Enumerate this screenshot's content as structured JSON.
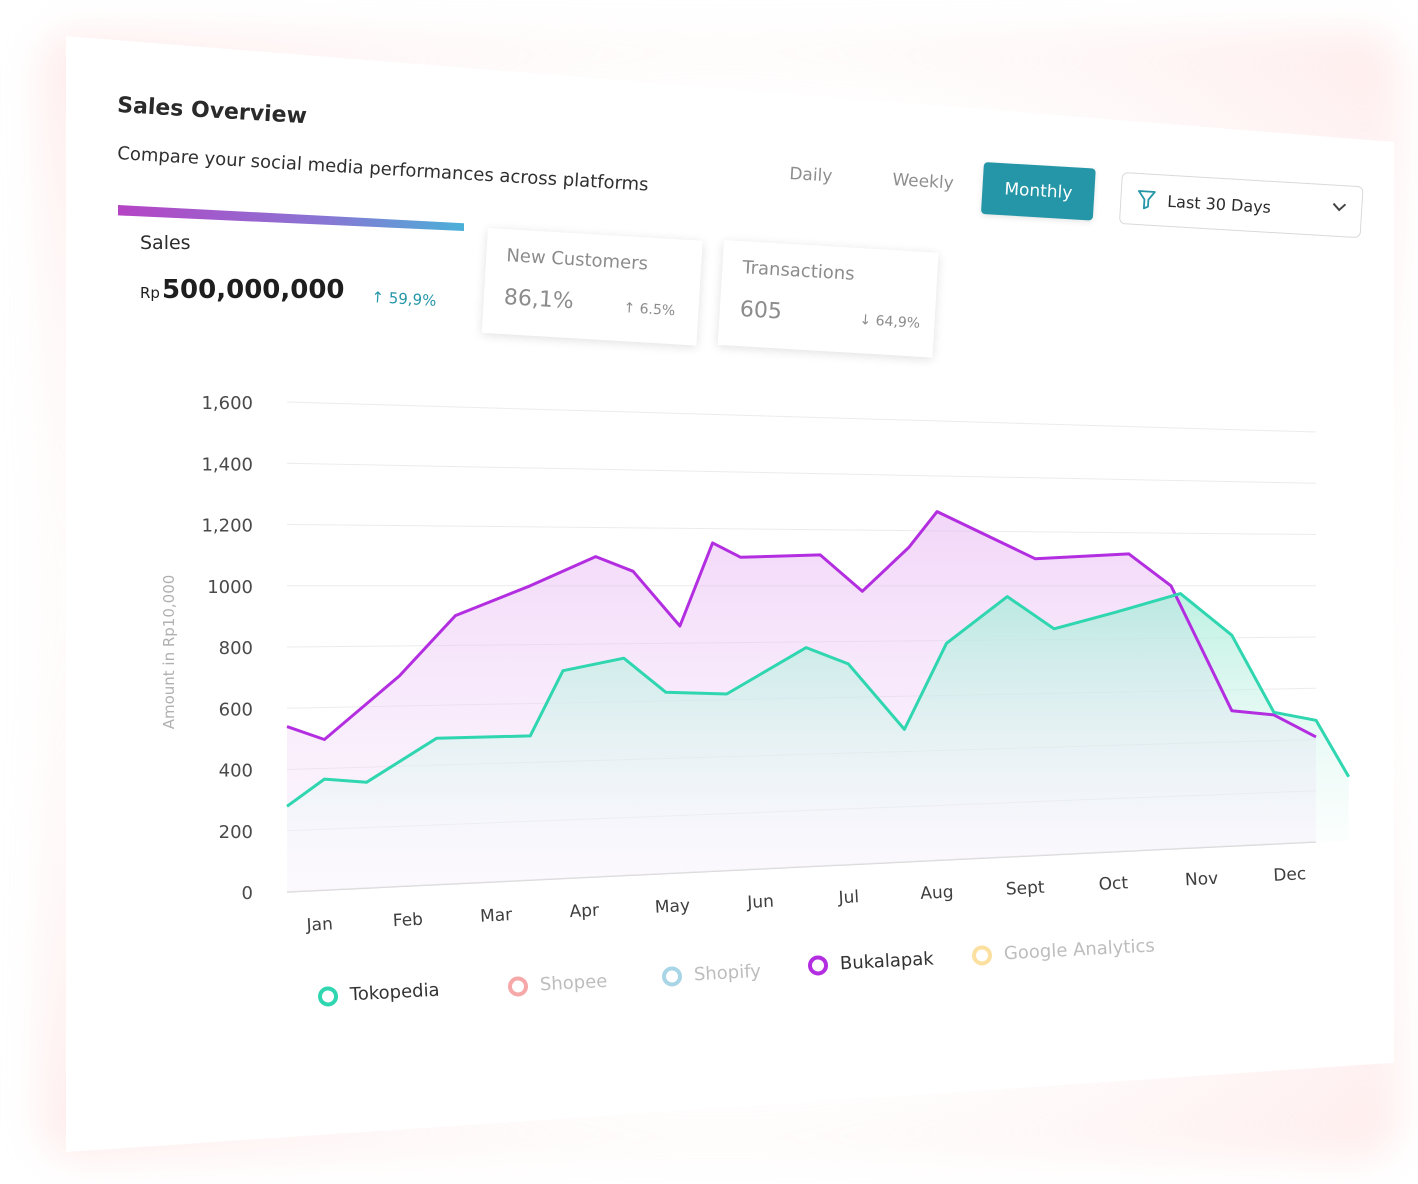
{
  "header": {
    "title": "Sales Overview",
    "subtitle": "Compare your social media performances across platforms"
  },
  "period_tabs": [
    {
      "label": "Daily",
      "active": false
    },
    {
      "label": "Weekly",
      "active": false
    },
    {
      "label": "Monthly",
      "active": true
    }
  ],
  "filter": {
    "label": "Last 30 Days",
    "icon": "filter-icon"
  },
  "kpis": {
    "sales": {
      "label": "Sales",
      "currency": "Rp",
      "value": "500,000,000",
      "change": "59,9%",
      "direction": "up"
    },
    "new_customers": {
      "label": "New Customers",
      "value": "86,1%",
      "change": "6.5%",
      "direction": "up"
    },
    "transactions": {
      "label": "Transactions",
      "value": "605",
      "change": "64,9%",
      "direction": "down"
    }
  },
  "colors": {
    "accent": "#2596a7",
    "tokopedia": "#2fd6b0",
    "bukalapak": "#b22ee0",
    "shopee": "#f6a8a8",
    "shopify": "#a9d6e6",
    "google_analytics": "#fbe0a0"
  },
  "chart_data": {
    "type": "area",
    "ylabel": "Amount in Rp10,000",
    "ylim": [
      0,
      1600
    ],
    "yticks": [
      "1,600",
      "1,400",
      "1,200",
      "1000",
      "800",
      "600",
      "400",
      "200",
      "0"
    ],
    "categories": [
      "Jan",
      "Feb",
      "Mar",
      "Apr",
      "May",
      "Jun",
      "Jul",
      "Aug",
      "Sept",
      "Oct",
      "Nov",
      "Dec"
    ],
    "series": [
      {
        "name": "Bukalapak",
        "color": "#b22ee0",
        "points": [
          [
            0.0,
            540
          ],
          [
            0.4,
            495
          ],
          [
            1.2,
            700
          ],
          [
            1.8,
            900
          ],
          [
            2.6,
            1000
          ],
          [
            3.3,
            1100
          ],
          [
            3.7,
            1050
          ],
          [
            4.2,
            860
          ],
          [
            4.55,
            1150
          ],
          [
            4.85,
            1100
          ],
          [
            5.7,
            1110
          ],
          [
            6.15,
            980
          ],
          [
            6.65,
            1140
          ],
          [
            6.95,
            1270
          ],
          [
            8.0,
            1100
          ],
          [
            9.0,
            1120
          ],
          [
            9.45,
            1000
          ],
          [
            10.1,
            520
          ],
          [
            10.55,
            500
          ],
          [
            11.0,
            410
          ]
        ]
      },
      {
        "name": "Tokopedia",
        "color": "#2fd6b0",
        "points": [
          [
            0.0,
            280
          ],
          [
            0.4,
            365
          ],
          [
            0.85,
            350
          ],
          [
            1.6,
            490
          ],
          [
            2.6,
            490
          ],
          [
            2.95,
            710
          ],
          [
            3.6,
            750
          ],
          [
            4.05,
            630
          ],
          [
            4.7,
            620
          ],
          [
            5.55,
            780
          ],
          [
            6.0,
            720
          ],
          [
            6.6,
            480
          ],
          [
            7.05,
            790
          ],
          [
            7.7,
            960
          ],
          [
            8.2,
            840
          ],
          [
            8.85,
            900
          ],
          [
            9.55,
            970
          ],
          [
            10.1,
            810
          ],
          [
            10.55,
            510
          ],
          [
            11.0,
            475
          ],
          [
            11.35,
            250
          ]
        ]
      }
    ],
    "legend": [
      {
        "name": "Tokopedia",
        "active": true
      },
      {
        "name": "Shopee",
        "active": false
      },
      {
        "name": "Shopify",
        "active": false
      },
      {
        "name": "Bukalapak",
        "active": true
      },
      {
        "name": "Google Analytics",
        "active": false
      }
    ]
  }
}
